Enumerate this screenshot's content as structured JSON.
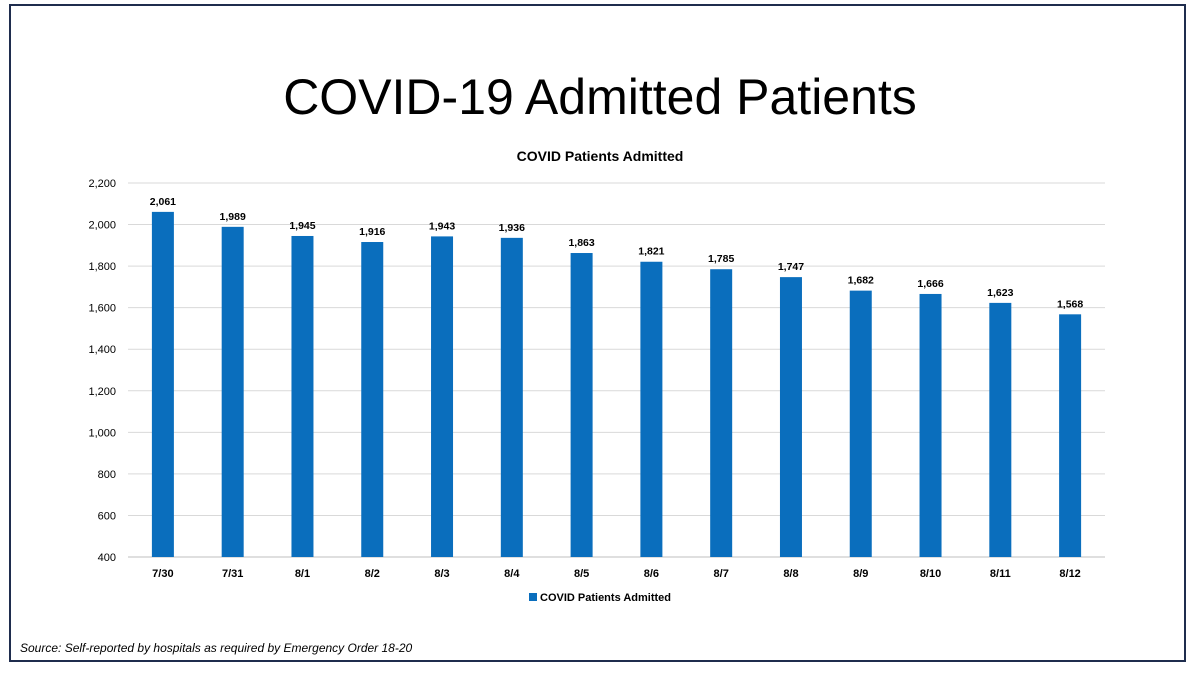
{
  "slide_title": "COVID-19 Admitted Patients",
  "source_note": "Source: Self-reported by hospitals as required by Emergency Order 18-20",
  "colors": {
    "bar": "#0a6ebd",
    "grid": "#d9d9d9",
    "frame": "#1f2d4e"
  },
  "chart_data": {
    "type": "bar",
    "title": "COVID Patients Admitted",
    "categories": [
      "7/30",
      "7/31",
      "8/1",
      "8/2",
      "8/3",
      "8/4",
      "8/5",
      "8/6",
      "8/7",
      "8/8",
      "8/9",
      "8/10",
      "8/11",
      "8/12"
    ],
    "series": [
      {
        "name": "COVID Patients Admitted",
        "values": [
          2061,
          1989,
          1945,
          1916,
          1943,
          1936,
          1863,
          1821,
          1785,
          1747,
          1682,
          1666,
          1623,
          1568
        ],
        "labels": [
          "2,061",
          "1,989",
          "1,945",
          "1,916",
          "1,943",
          "1,936",
          "1,863",
          "1,821",
          "1,785",
          "1,747",
          "1,682",
          "1,666",
          "1,623",
          "1,568"
        ]
      }
    ],
    "ylim": [
      400,
      2200
    ],
    "yticks": [
      400,
      600,
      800,
      1000,
      1200,
      1400,
      1600,
      1800,
      2000,
      2200
    ],
    "ytick_labels": [
      "400",
      "600",
      "800",
      "1,000",
      "1,200",
      "1,400",
      "1,600",
      "1,800",
      "2,000",
      "2,200"
    ],
    "xlabel": "",
    "ylabel": "",
    "grid": true,
    "legend": "bottom-center"
  }
}
